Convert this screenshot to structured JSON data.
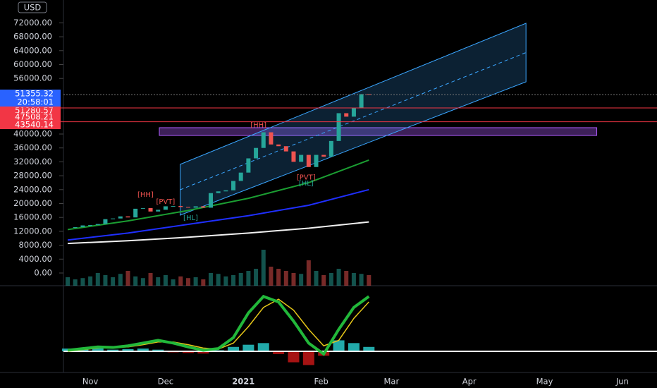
{
  "chart_data": {
    "type": "candlestick",
    "currency": "USD",
    "xlim": [
      -10.7,
      225.8
    ],
    "xticks": [
      {
        "value": 0,
        "label": "Nov"
      },
      {
        "value": 30,
        "label": "Dec"
      },
      {
        "value": 61,
        "label": "2021"
      },
      {
        "value": 92,
        "label": "Feb"
      },
      {
        "value": 120,
        "label": "Mar"
      },
      {
        "value": 151,
        "label": "Apr"
      },
      {
        "value": 181,
        "label": "May"
      },
      {
        "value": 212,
        "label": "Jun"
      }
    ],
    "ylim": [
      0,
      78580
    ],
    "yticks": [
      {
        "value": 0,
        "label": "0.00"
      },
      {
        "value": 4000,
        "label": "4000.00"
      },
      {
        "value": 8000,
        "label": "8000.00"
      },
      {
        "value": 12000,
        "label": "12000.00"
      },
      {
        "value": 16000,
        "label": "16000.00"
      },
      {
        "value": 20000,
        "label": "20000.00"
      },
      {
        "value": 24000,
        "label": "24000.00"
      },
      {
        "value": 28000,
        "label": "28000.00"
      },
      {
        "value": 32000,
        "label": "32000.00"
      },
      {
        "value": 36000,
        "label": "36000.00"
      },
      {
        "value": 40000,
        "label": "40000.00"
      },
      {
        "value": 56000,
        "label": "56000.00"
      },
      {
        "value": 60000,
        "label": "60000.00"
      },
      {
        "value": 64000,
        "label": "64000.00"
      },
      {
        "value": 68000,
        "label": "68000.00"
      },
      {
        "value": 72000,
        "label": "72000.00"
      }
    ],
    "x": [
      -9,
      -6,
      -3,
      0,
      3,
      6,
      9,
      12,
      15,
      18,
      21,
      24,
      27,
      30,
      33,
      36,
      39,
      42,
      45,
      48,
      51,
      54,
      57,
      60,
      63,
      66,
      69,
      72,
      75,
      78,
      81,
      84,
      87,
      90,
      93,
      96,
      99,
      102,
      105,
      108,
      111
    ],
    "values": [
      13000,
      13200,
      13700,
      13800,
      14100,
      15500,
      15700,
      16300,
      16000,
      18500,
      18700,
      17700,
      18200,
      19200,
      19300,
      19000,
      18800,
      19200,
      18800,
      23000,
      23500,
      23800,
      26500,
      28900,
      33000,
      36000,
      40500,
      37000,
      36500,
      35000,
      32000,
      34000,
      30500,
      34000,
      33500,
      38000,
      46000,
      45000,
      47500,
      51500,
      51355.32
    ],
    "up_color": "#26a69a",
    "down_color": "#ef5350",
    "volume": [
      20,
      15,
      18,
      22,
      30,
      25,
      20,
      28,
      35,
      22,
      18,
      30,
      20,
      25,
      15,
      22,
      18,
      20,
      15,
      30,
      28,
      22,
      25,
      30,
      35,
      40,
      85,
      45,
      40,
      35,
      30,
      28,
      60,
      35,
      25,
      30,
      40,
      35,
      30,
      28,
      25
    ],
    "volume_lim": [
      0,
      100
    ],
    "moving_averages": [
      {
        "color": "#1b9e32",
        "x": [
          -9,
          15,
          39,
          63,
          87,
          111
        ],
        "values": [
          12500,
          15000,
          18000,
          21500,
          26000,
          32500
        ]
      },
      {
        "color": "#1f2fff",
        "x": [
          -9,
          15,
          39,
          63,
          87,
          111
        ],
        "values": [
          9500,
          11500,
          14000,
          16500,
          19500,
          24000
        ]
      },
      {
        "color": "#f0f0f0",
        "x": [
          -9,
          15,
          39,
          63,
          87,
          111
        ],
        "values": [
          8500,
          9300,
          10300,
          11500,
          12900,
          14700
        ]
      }
    ],
    "channel": {
      "x": [
        35.8,
        173.6
      ],
      "upper": [
        31270,
        71880
      ],
      "lower": [
        16650,
        55030
      ],
      "color": "#3aa6ff"
    },
    "zone": {
      "x": [
        27.5,
        201.8
      ],
      "y": [
        39590,
        41830
      ],
      "color": "#b05cff"
    },
    "levels": [
      {
        "value": 51355.32,
        "color": "#2962ff"
      },
      {
        "value": 51280.57,
        "color": "#f23645"
      },
      {
        "value": 47508.21,
        "color": "#f23645"
      },
      {
        "value": 43540.14,
        "color": "#f23645"
      }
    ],
    "countdown": "20:58:01",
    "annotations": [
      {
        "text": "[HH]",
        "x": 22,
        "y": 22500
      },
      {
        "text": "[PVT]",
        "x": 30,
        "y": 20500
      },
      {
        "text": "[HL]",
        "x": 40,
        "y": 15800
      },
      {
        "text": "[HH]",
        "x": 67,
        "y": 42500
      },
      {
        "text": "[PVT]",
        "x": 86,
        "y": 27500
      },
      {
        "text": "[HL]",
        "x": 86,
        "y": 25800
      }
    ],
    "oscillator": {
      "ylim": [
        -60,
        120
      ],
      "x": [
        -9,
        -3,
        3,
        9,
        15,
        21,
        27,
        33,
        39,
        45,
        51,
        57,
        63,
        69,
        75,
        81,
        87,
        93,
        99,
        105,
        111
      ],
      "main": [
        2,
        5,
        8,
        7,
        10,
        15,
        20,
        15,
        8,
        2,
        5,
        25,
        70,
        100,
        90,
        55,
        15,
        -5,
        40,
        80,
        100
      ],
      "signal": [
        0,
        3,
        6,
        7,
        8,
        12,
        17,
        17,
        12,
        6,
        4,
        15,
        45,
        80,
        95,
        75,
        40,
        10,
        20,
        60,
        90
      ],
      "histogram": [
        5,
        6,
        6,
        3,
        4,
        5,
        3,
        -2,
        -3,
        -4,
        2,
        8,
        12,
        15,
        -5,
        -20,
        -25,
        -8,
        20,
        15,
        8
      ],
      "main_color": "#22b83a",
      "signal_color": "#e6c619",
      "pos_color": "#2ad4d4",
      "neg_color": "#d01818"
    }
  }
}
